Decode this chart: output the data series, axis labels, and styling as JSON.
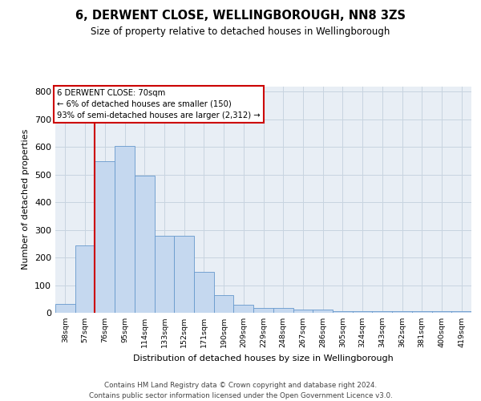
{
  "title_line1": "6, DERWENT CLOSE, WELLINGBOROUGH, NN8 3ZS",
  "title_line2": "Size of property relative to detached houses in Wellingborough",
  "xlabel": "Distribution of detached houses by size in Wellingborough",
  "ylabel": "Number of detached properties",
  "categories": [
    "38sqm",
    "57sqm",
    "76sqm",
    "95sqm",
    "114sqm",
    "133sqm",
    "152sqm",
    "171sqm",
    "190sqm",
    "209sqm",
    "229sqm",
    "248sqm",
    "267sqm",
    "286sqm",
    "305sqm",
    "324sqm",
    "343sqm",
    "362sqm",
    "381sqm",
    "400sqm",
    "419sqm"
  ],
  "values": [
    33,
    245,
    550,
    605,
    495,
    278,
    278,
    148,
    65,
    30,
    18,
    18,
    12,
    12,
    5,
    5,
    5,
    5,
    5,
    5,
    5
  ],
  "bar_color": "#c5d8ef",
  "bar_edge_color": "#6699cc",
  "red_line_x": 1.5,
  "annotation_box_text": "6 DERWENT CLOSE: 70sqm\n← 6% of detached houses are smaller (150)\n93% of semi-detached houses are larger (2,312) →",
  "ylim": [
    0,
    820
  ],
  "yticks": [
    0,
    100,
    200,
    300,
    400,
    500,
    600,
    700,
    800
  ],
  "grid_color": "#c8d4e0",
  "background_color": "#e8eef5",
  "footer_line1": "Contains HM Land Registry data © Crown copyright and database right 2024.",
  "footer_line2": "Contains public sector information licensed under the Open Government Licence v3.0."
}
